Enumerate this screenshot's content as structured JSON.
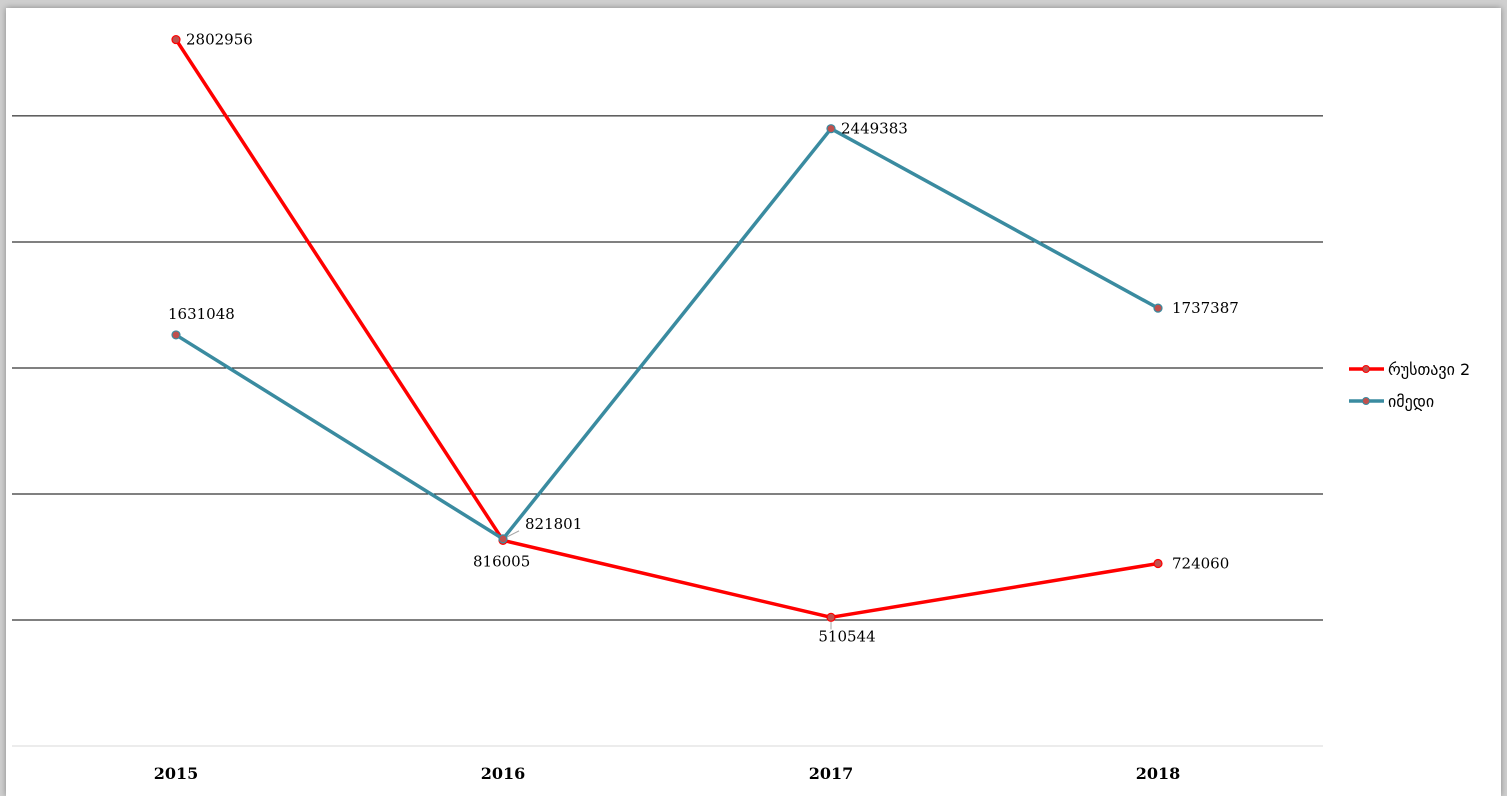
{
  "chart_data": {
    "type": "line",
    "categories": [
      "2015",
      "2016",
      "2017",
      "2018"
    ],
    "series": [
      {
        "name": "რუსთავი 2",
        "color": "#ff0000",
        "values": [
          2802956,
          816005,
          510544,
          724060
        ],
        "labels": [
          "2802956",
          "816005",
          "510544",
          "724060"
        ]
      },
      {
        "name": "იმედი",
        "color": "#3a8ba0",
        "values": [
          1631048,
          821801,
          2449383,
          1737387
        ],
        "labels": [
          "1631048",
          "821801",
          "2449383",
          "1737387"
        ]
      }
    ],
    "marker_color": "#c0504d",
    "ylim": [
      0,
      3000000
    ],
    "ygrid_step": 500000,
    "grid": true,
    "show_y_tick_labels": false,
    "legend_position": "right"
  }
}
